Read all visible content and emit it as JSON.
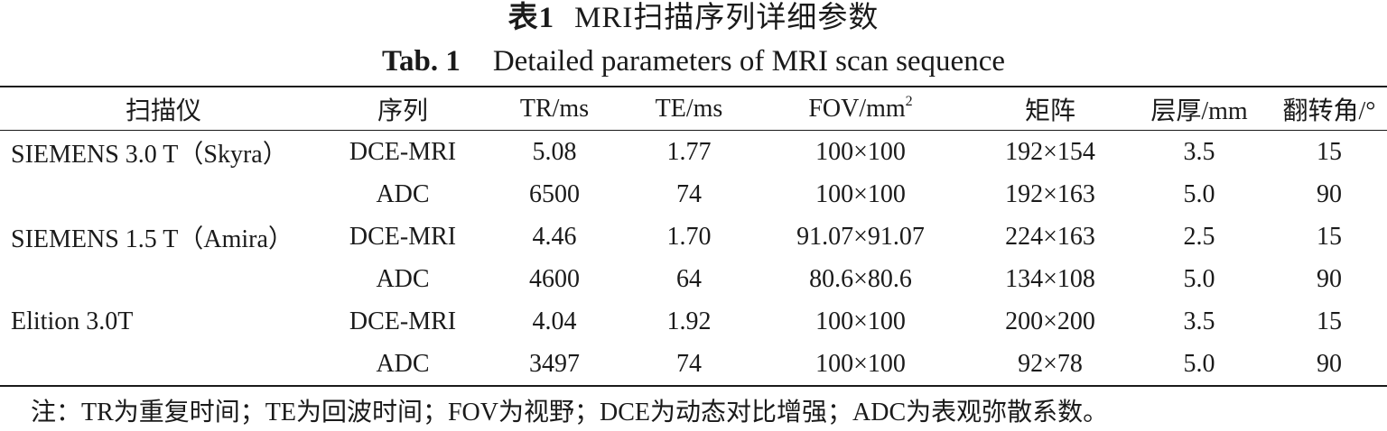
{
  "caption": {
    "cn_label": "表1",
    "cn_title": "MRI扫描序列详细参数",
    "en_label": "Tab. 1",
    "en_title": "Detailed parameters of MRI scan sequence"
  },
  "table": {
    "headers": {
      "scanner": "扫描仪",
      "sequence": "序列",
      "tr": "TR/ms",
      "te": "TE/ms",
      "fov": "FOV/mm",
      "fov_sup": "2",
      "matrix": "矩阵",
      "thickness": "层厚/mm",
      "flip": "翻转角/°"
    },
    "rows": [
      {
        "scanner": "SIEMENS 3.0 T（Skyra）",
        "sequence": "DCE-MRI",
        "tr": "5.08",
        "te": "1.77",
        "fov": "100×100",
        "matrix": "192×154",
        "thickness": "3.5",
        "flip": "15"
      },
      {
        "scanner": "",
        "sequence": "ADC",
        "tr": "6500",
        "te": "74",
        "fov": "100×100",
        "matrix": "192×163",
        "thickness": "5.0",
        "flip": "90"
      },
      {
        "scanner": "SIEMENS 1.5 T（Amira）",
        "sequence": "DCE-MRI",
        "tr": "4.46",
        "te": "1.70",
        "fov": "91.07×91.07",
        "matrix": "224×163",
        "thickness": "2.5",
        "flip": "15"
      },
      {
        "scanner": "",
        "sequence": "ADC",
        "tr": "4600",
        "te": "64",
        "fov": "80.6×80.6",
        "matrix": "134×108",
        "thickness": "5.0",
        "flip": "90"
      },
      {
        "scanner": "Elition 3.0T",
        "sequence": "DCE-MRI",
        "tr": "4.04",
        "te": "1.92",
        "fov": "100×100",
        "matrix": "200×200",
        "thickness": "3.5",
        "flip": "15"
      },
      {
        "scanner": "",
        "sequence": "ADC",
        "tr": "3497",
        "te": "74",
        "fov": "100×100",
        "matrix": "92×78",
        "thickness": "5.0",
        "flip": "90"
      }
    ]
  },
  "note": "注：TR为重复时间；TE为回波时间；FOV为视野；DCE为动态对比增强；ADC为表观弥散系数。"
}
